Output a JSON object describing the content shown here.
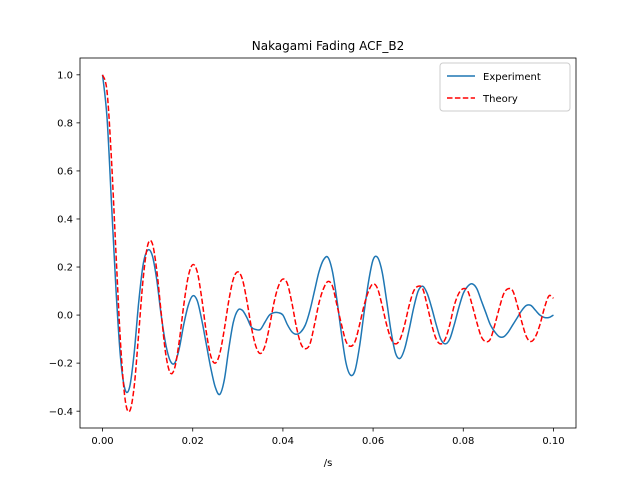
{
  "chart_data": {
    "type": "line",
    "title": "Nakagami Fading ACF_B2",
    "xlabel": "/s",
    "ylabel": "",
    "xlim": [
      -0.005,
      0.105
    ],
    "ylim": [
      -0.47,
      1.07
    ],
    "xticks": [
      0.0,
      0.02,
      0.04,
      0.06,
      0.08,
      0.1
    ],
    "xtick_labels": [
      "0.00",
      "0.02",
      "0.04",
      "0.06",
      "0.08",
      "0.10"
    ],
    "yticks": [
      -0.4,
      -0.2,
      0.0,
      0.2,
      0.4,
      0.6,
      0.8,
      1.0
    ],
    "ytick_labels": [
      "−0.4",
      "−0.2",
      "0.0",
      "0.2",
      "0.4",
      "0.6",
      "0.8",
      "1.0"
    ],
    "grid": false,
    "legend_position": "top-right",
    "series": [
      {
        "name": "Experiment",
        "color": "#1f77b4",
        "style": "solid",
        "x": [
          0.0,
          0.001,
          0.002,
          0.003,
          0.004,
          0.005,
          0.006,
          0.007,
          0.008,
          0.009,
          0.01,
          0.011,
          0.012,
          0.013,
          0.014,
          0.015,
          0.016,
          0.017,
          0.018,
          0.019,
          0.02,
          0.021,
          0.022,
          0.023,
          0.024,
          0.025,
          0.026,
          0.027,
          0.028,
          0.029,
          0.03,
          0.031,
          0.032,
          0.033,
          0.034,
          0.035,
          0.036,
          0.037,
          0.038,
          0.039,
          0.04,
          0.041,
          0.042,
          0.043,
          0.044,
          0.045,
          0.046,
          0.047,
          0.048,
          0.049,
          0.05,
          0.051,
          0.052,
          0.053,
          0.054,
          0.055,
          0.056,
          0.057,
          0.058,
          0.059,
          0.06,
          0.061,
          0.062,
          0.063,
          0.064,
          0.065,
          0.066,
          0.067,
          0.068,
          0.069,
          0.07,
          0.071,
          0.072,
          0.073,
          0.074,
          0.075,
          0.076,
          0.077,
          0.078,
          0.079,
          0.08,
          0.081,
          0.082,
          0.083,
          0.084,
          0.085,
          0.086,
          0.087,
          0.088,
          0.089,
          0.09,
          0.091,
          0.092,
          0.093,
          0.094,
          0.095,
          0.096,
          0.097,
          0.098,
          0.099,
          0.1
        ],
        "y": [
          1.0,
          0.82,
          0.46,
          0.1,
          -0.18,
          -0.31,
          -0.3,
          -0.16,
          0.05,
          0.21,
          0.27,
          0.25,
          0.15,
          0.0,
          -0.12,
          -0.19,
          -0.2,
          -0.14,
          -0.04,
          0.04,
          0.08,
          0.06,
          -0.02,
          -0.12,
          -0.22,
          -0.3,
          -0.33,
          -0.27,
          -0.14,
          -0.03,
          0.02,
          0.02,
          -0.01,
          -0.05,
          -0.06,
          -0.06,
          -0.03,
          0.0,
          0.01,
          0.01,
          0.0,
          -0.04,
          -0.07,
          -0.08,
          -0.07,
          -0.04,
          0.02,
          0.1,
          0.18,
          0.23,
          0.24,
          0.18,
          0.06,
          -0.08,
          -0.2,
          -0.25,
          -0.23,
          -0.13,
          0.01,
          0.14,
          0.23,
          0.24,
          0.18,
          0.06,
          -0.07,
          -0.16,
          -0.18,
          -0.14,
          -0.06,
          0.03,
          0.1,
          0.12,
          0.09,
          0.03,
          -0.04,
          -0.1,
          -0.12,
          -0.1,
          -0.04,
          0.03,
          0.09,
          0.12,
          0.13,
          0.11,
          0.06,
          0.01,
          -0.04,
          -0.07,
          -0.09,
          -0.09,
          -0.07,
          -0.04,
          -0.01,
          0.02,
          0.04,
          0.04,
          0.02,
          0.0,
          -0.01,
          -0.01,
          0.0
        ]
      },
      {
        "name": "Theory",
        "color": "#ff0000",
        "style": "dashed",
        "x": [
          0.0,
          0.001,
          0.002,
          0.003,
          0.004,
          0.005,
          0.006,
          0.007,
          0.008,
          0.009,
          0.01,
          0.011,
          0.012,
          0.013,
          0.014,
          0.015,
          0.016,
          0.017,
          0.018,
          0.019,
          0.02,
          0.021,
          0.022,
          0.023,
          0.024,
          0.025,
          0.026,
          0.027,
          0.028,
          0.029,
          0.03,
          0.031,
          0.032,
          0.033,
          0.034,
          0.035,
          0.036,
          0.037,
          0.038,
          0.039,
          0.04,
          0.041,
          0.042,
          0.043,
          0.044,
          0.045,
          0.046,
          0.047,
          0.048,
          0.049,
          0.05,
          0.051,
          0.052,
          0.053,
          0.054,
          0.055,
          0.056,
          0.057,
          0.058,
          0.059,
          0.06,
          0.061,
          0.062,
          0.063,
          0.064,
          0.065,
          0.066,
          0.067,
          0.068,
          0.069,
          0.07,
          0.071,
          0.072,
          0.073,
          0.074,
          0.075,
          0.076,
          0.077,
          0.078,
          0.079,
          0.08,
          0.081,
          0.082,
          0.083,
          0.084,
          0.085,
          0.086,
          0.087,
          0.088,
          0.089,
          0.09,
          0.091,
          0.092,
          0.093,
          0.094,
          0.095,
          0.096,
          0.097,
          0.098,
          0.099,
          0.1
        ],
        "y": [
          1.0,
          0.93,
          0.64,
          0.25,
          -0.12,
          -0.35,
          -0.4,
          -0.3,
          -0.08,
          0.15,
          0.29,
          0.3,
          0.19,
          0.01,
          -0.16,
          -0.24,
          -0.22,
          -0.11,
          0.04,
          0.16,
          0.21,
          0.18,
          0.07,
          -0.07,
          -0.17,
          -0.2,
          -0.16,
          -0.06,
          0.06,
          0.15,
          0.18,
          0.15,
          0.06,
          -0.05,
          -0.13,
          -0.16,
          -0.13,
          -0.05,
          0.05,
          0.12,
          0.15,
          0.13,
          0.05,
          -0.05,
          -0.12,
          -0.14,
          -0.12,
          -0.04,
          0.05,
          0.11,
          0.14,
          0.12,
          0.04,
          -0.04,
          -0.11,
          -0.13,
          -0.11,
          -0.04,
          0.04,
          0.1,
          0.13,
          0.11,
          0.04,
          -0.04,
          -0.1,
          -0.12,
          -0.1,
          -0.04,
          0.04,
          0.1,
          0.12,
          0.11,
          0.04,
          -0.04,
          -0.1,
          -0.12,
          -0.1,
          -0.04,
          0.04,
          0.09,
          0.11,
          0.1,
          0.04,
          -0.03,
          -0.09,
          -0.11,
          -0.1,
          -0.04,
          0.03,
          0.09,
          0.11,
          0.1,
          0.04,
          -0.03,
          -0.09,
          -0.11,
          -0.09,
          -0.04,
          0.03,
          0.08,
          0.07
        ]
      }
    ]
  }
}
